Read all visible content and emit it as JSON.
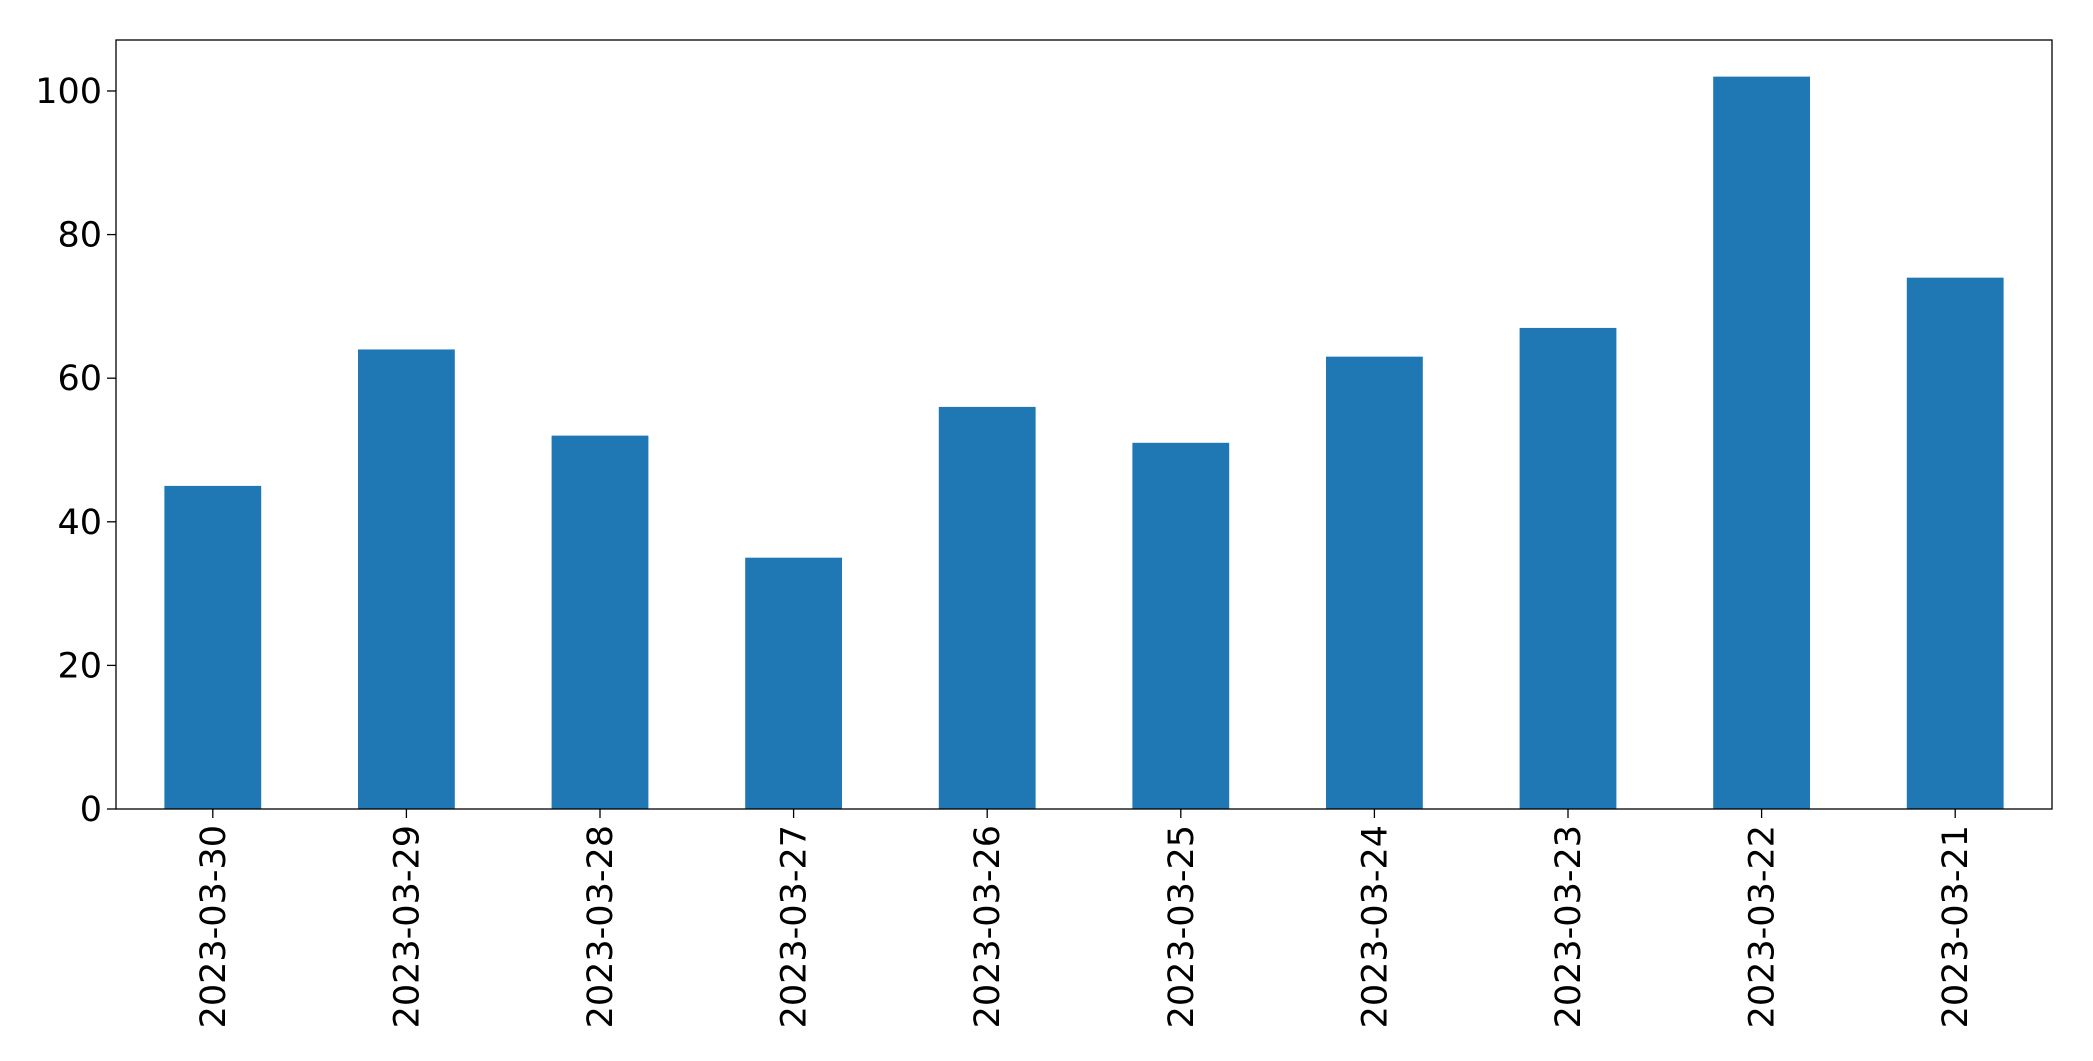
{
  "chart_data": {
    "type": "bar",
    "categories": [
      "2023-03-30",
      "2023-03-29",
      "2023-03-28",
      "2023-03-27",
      "2023-03-26",
      "2023-03-25",
      "2023-03-24",
      "2023-03-23",
      "2023-03-22",
      "2023-03-21"
    ],
    "values": [
      45,
      64,
      52,
      35,
      56,
      51,
      63,
      67,
      102,
      74
    ],
    "color": "#1f77b4",
    "ylim": [
      0,
      107.1
    ],
    "yticks": [
      0,
      20,
      40,
      60,
      80,
      100
    ],
    "grid": false
  }
}
